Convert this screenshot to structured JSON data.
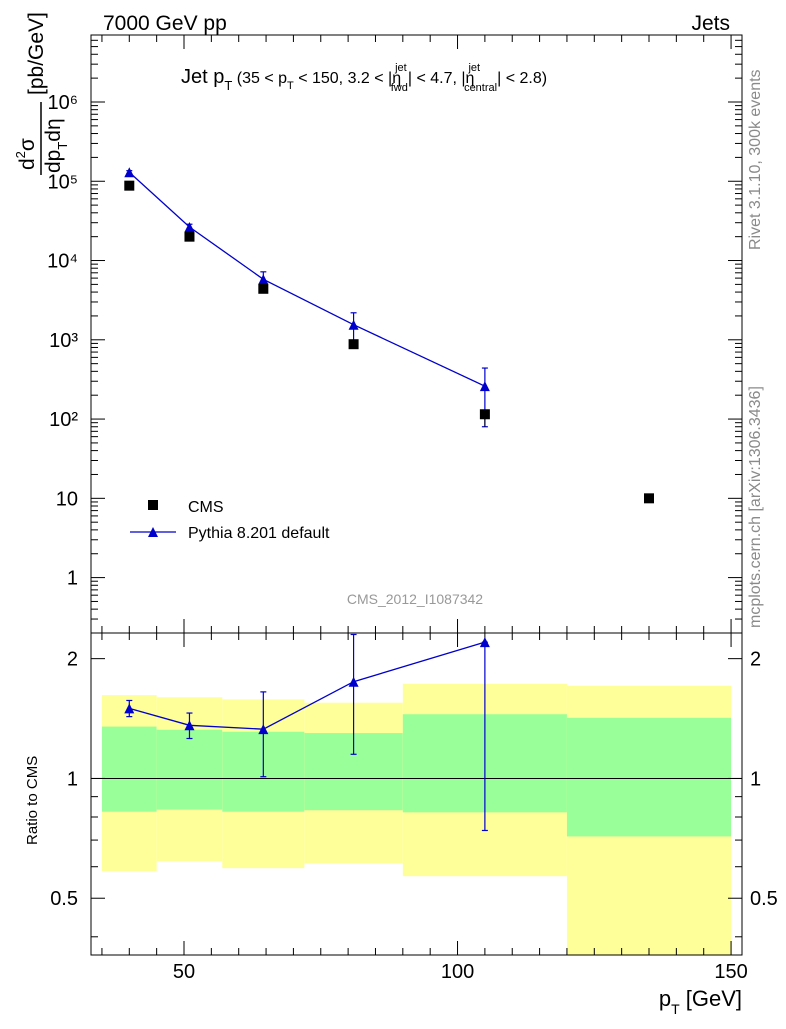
{
  "header": {
    "left": "7000 GeV pp",
    "right": "Jets"
  },
  "side": {
    "rivet": "Rivet 3.1.10,  300k events",
    "mcplots": "mcplots.cern.ch [arXiv:1306.3436]"
  },
  "watermark": "CMS_2012_I1087342",
  "colors": {
    "mc": "#0000cc",
    "green": "#99ff99",
    "yellow": "#ffff99",
    "data": "#000000"
  },
  "chart_data": [
    {
      "type": "scatter",
      "title": "Jet p_T (35 < p_T < 150, 3.2 < |η_fwd^jet| < 4.7, |η_central^jet| < 2.8)",
      "xlabel": "p_T [GeV]",
      "ylabel": "d²σ/dp_T dη [pb/GeV]",
      "yscale": "log",
      "xlim": [
        33,
        152
      ],
      "ylim": [
        0.2,
        7000000
      ],
      "ytick_labels": [
        "1",
        "10",
        "10²",
        "10³",
        "10⁴",
        "10⁵",
        "10⁶"
      ],
      "legend_position": "bottom-left",
      "series": [
        {
          "name": "CMS",
          "marker": "square",
          "x": [
            40,
            51,
            64.5,
            81,
            105,
            135
          ],
          "y": [
            88000,
            20000,
            4400,
            880,
            115,
            10
          ],
          "yerr_low": [
            0,
            0,
            0,
            0,
            35,
            0
          ],
          "yerr_high": [
            0,
            0,
            0,
            0,
            0,
            0
          ]
        },
        {
          "name": "Pythia 8.201 default",
          "marker": "triangle",
          "x": [
            40,
            51,
            64.5,
            81,
            105
          ],
          "y": [
            130000,
            26500,
            5800,
            1550,
            260
          ],
          "yerr_low": [
            6000,
            2200,
            1400,
            640,
            180
          ],
          "yerr_high": [
            6000,
            2200,
            1400,
            640,
            180
          ]
        }
      ]
    },
    {
      "type": "line",
      "ylabel": "Ratio to CMS",
      "xlabel": "p_T [GeV]",
      "xlim": [
        33,
        152
      ],
      "ylim": [
        0.36,
        2.32
      ],
      "xtick_labels": [
        "50",
        "100",
        "150"
      ],
      "ytick_labels": [
        "0.5",
        "1",
        "2"
      ],
      "reference_line": 1,
      "bands": [
        {
          "x0": 35,
          "x1": 45,
          "yellow": [
            0.585,
            1.62
          ],
          "green": [
            0.825,
            1.35
          ]
        },
        {
          "x0": 45,
          "x1": 57,
          "yellow": [
            0.62,
            1.6
          ],
          "green": [
            0.835,
            1.325
          ]
        },
        {
          "x0": 57,
          "x1": 72,
          "yellow": [
            0.595,
            1.58
          ],
          "green": [
            0.825,
            1.31
          ]
        },
        {
          "x0": 72,
          "x1": 90,
          "yellow": [
            0.612,
            1.55
          ],
          "green": [
            0.832,
            1.3
          ]
        },
        {
          "x0": 90,
          "x1": 120,
          "yellow": [
            0.568,
            1.73
          ],
          "green": [
            0.822,
            1.45
          ]
        },
        {
          "x0": 120,
          "x1": 150,
          "yellow": [
            0.3,
            1.71
          ],
          "green": [
            0.715,
            1.42
          ]
        }
      ],
      "series": [
        {
          "name": "Pythia 8.201 default",
          "x": [
            40,
            51,
            64.5,
            81,
            105
          ],
          "y": [
            1.5,
            1.36,
            1.33,
            1.75,
            2.2
          ],
          "yerr_low": [
            0.07,
            0.1,
            0.32,
            0.6,
            1.46
          ],
          "yerr_high": [
            0.07,
            0.1,
            0.32,
            0.55,
            0.0
          ]
        }
      ]
    }
  ]
}
